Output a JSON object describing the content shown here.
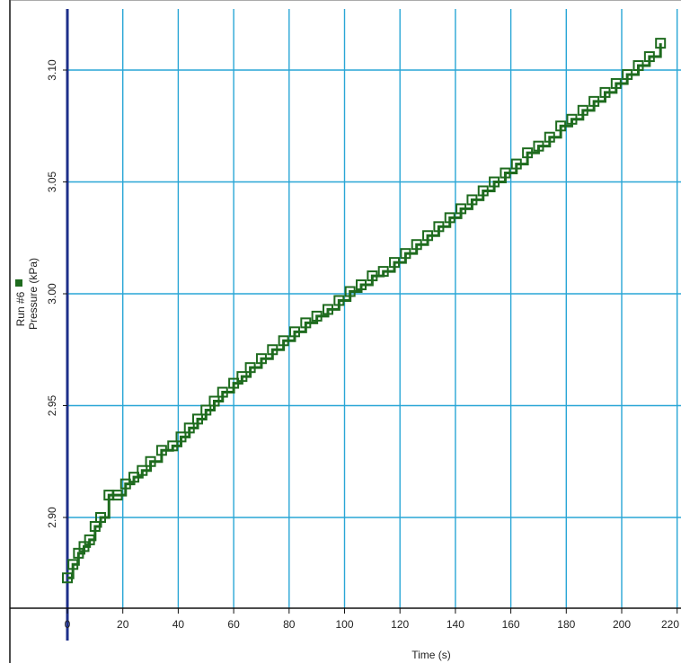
{
  "chart_data": {
    "type": "line",
    "xlabel": "Time (s)",
    "ylabel": "Pressure (kPa)",
    "xlim": [
      0,
      220
    ],
    "ylim": [
      2.86,
      3.12
    ],
    "xticks": [
      0,
      20,
      40,
      60,
      80,
      100,
      120,
      140,
      160,
      180,
      200,
      220
    ],
    "yticks": [
      2.9,
      2.95,
      3.0,
      3.05,
      3.1
    ],
    "grid": true,
    "legend": "left",
    "series": [
      {
        "name": "Run #6",
        "color": "#1e6b1e",
        "x": [
          0,
          2,
          4,
          6,
          8,
          10,
          12,
          15,
          18,
          21,
          24,
          27,
          30,
          34,
          38,
          41,
          44,
          47,
          50,
          53,
          56,
          60,
          63,
          66,
          70,
          74,
          78,
          82,
          86,
          90,
          94,
          98,
          102,
          106,
          110,
          114,
          118,
          122,
          126,
          130,
          134,
          138,
          142,
          146,
          150,
          154,
          158,
          162,
          166,
          170,
          174,
          178,
          182,
          186,
          190,
          194,
          198,
          202,
          206,
          210,
          214
        ],
        "values": [
          2.873,
          2.879,
          2.884,
          2.887,
          2.89,
          2.896,
          2.9,
          2.91,
          2.91,
          2.915,
          2.918,
          2.921,
          2.925,
          2.93,
          2.932,
          2.936,
          2.94,
          2.944,
          2.948,
          2.952,
          2.956,
          2.96,
          2.963,
          2.967,
          2.971,
          2.975,
          2.979,
          2.983,
          2.987,
          2.99,
          2.993,
          2.997,
          3.001,
          3.004,
          3.008,
          3.01,
          3.014,
          3.018,
          3.022,
          3.026,
          3.03,
          3.034,
          3.038,
          3.042,
          3.046,
          3.05,
          3.054,
          3.058,
          3.063,
          3.066,
          3.07,
          3.075,
          3.078,
          3.082,
          3.086,
          3.09,
          3.094,
          3.098,
          3.102,
          3.106,
          3.112
        ]
      }
    ]
  }
}
